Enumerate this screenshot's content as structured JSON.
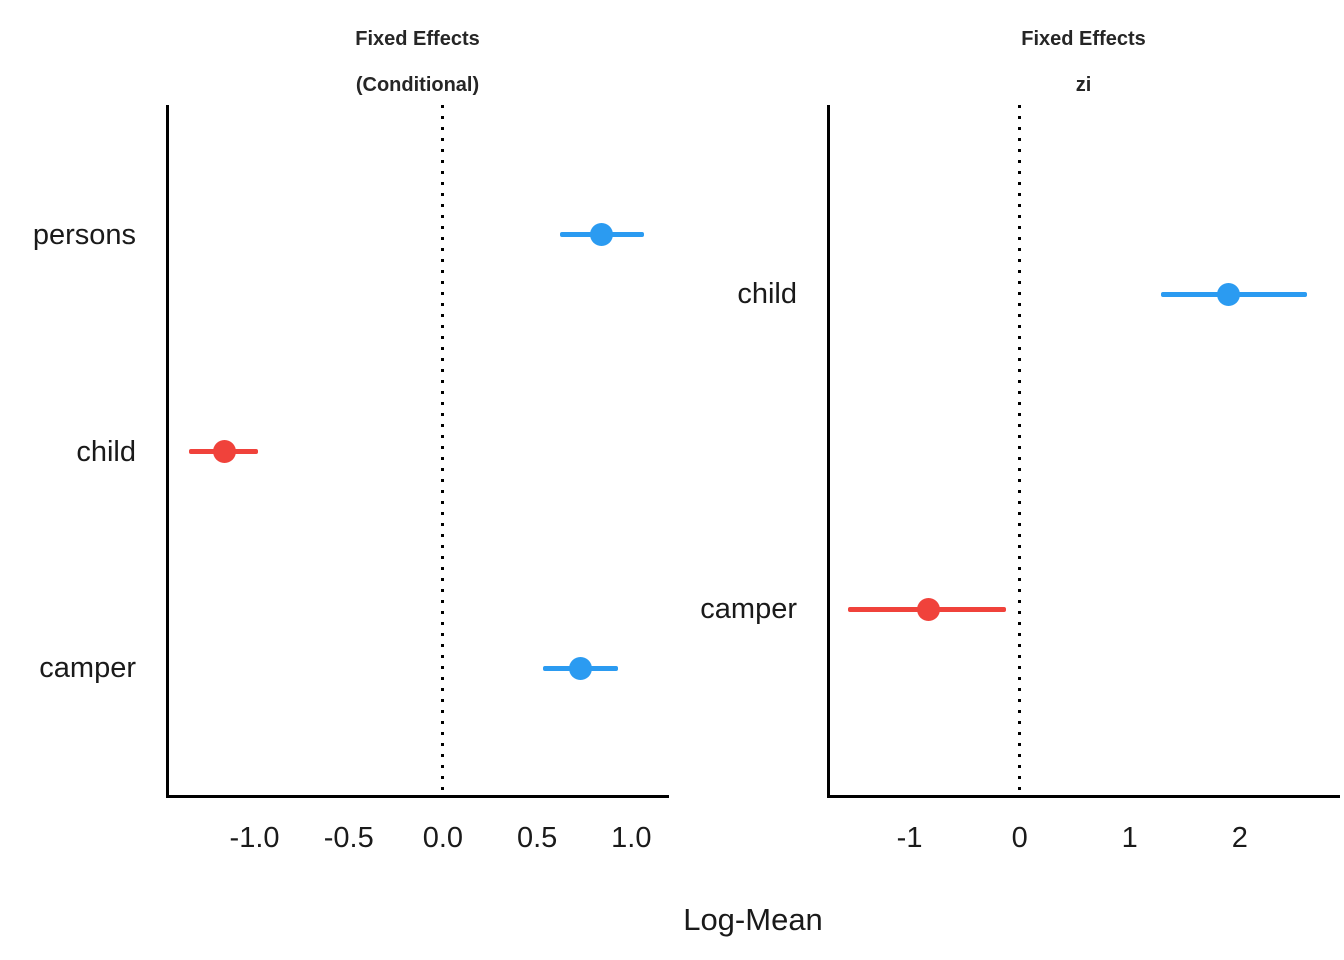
{
  "figure": {
    "xlabel": "Log-Mean",
    "positive_color": "#2B9BF1",
    "negative_color": "#F0423B",
    "reference_line_color": "#000000"
  },
  "chart_data": [
    {
      "type": "scatter",
      "style": "pointrange-forest",
      "title": "Fixed Effects",
      "subtitle": "(Conditional)",
      "categories": [
        "persons",
        "child",
        "camper"
      ],
      "estimates": [
        0.84,
        -1.16,
        0.73
      ],
      "ci_low": [
        0.62,
        -1.35,
        0.53
      ],
      "ci_high": [
        1.07,
        -0.98,
        0.93
      ],
      "colors": [
        "#2B9BF1",
        "#F0423B",
        "#2B9BF1"
      ],
      "xlim": [
        -1.47,
        1.2
      ],
      "x_ticks": [
        -1.0,
        -0.5,
        0.0,
        0.5,
        1.0
      ],
      "x_tick_labels": [
        "-1.0",
        "-0.5",
        "0.0",
        "0.5",
        "1.0"
      ],
      "reference_line": 0,
      "xlabel": "Log-Mean",
      "grid": false,
      "legend": "none"
    },
    {
      "type": "scatter",
      "style": "pointrange-forest",
      "title": "Fixed Effects",
      "subtitle": "zi",
      "categories": [
        "child",
        "camper"
      ],
      "estimates": [
        1.9,
        -0.83
      ],
      "ci_low": [
        1.28,
        -1.56
      ],
      "ci_high": [
        2.61,
        -0.12
      ],
      "colors": [
        "#2B9BF1",
        "#F0423B"
      ],
      "xlim": [
        -1.75,
        2.91
      ],
      "x_ticks": [
        -1,
        0,
        1,
        2
      ],
      "x_tick_labels": [
        "-1",
        "0",
        "1",
        "2"
      ],
      "reference_line": 0,
      "xlabel": "Log-Mean",
      "grid": false,
      "legend": "none"
    }
  ]
}
